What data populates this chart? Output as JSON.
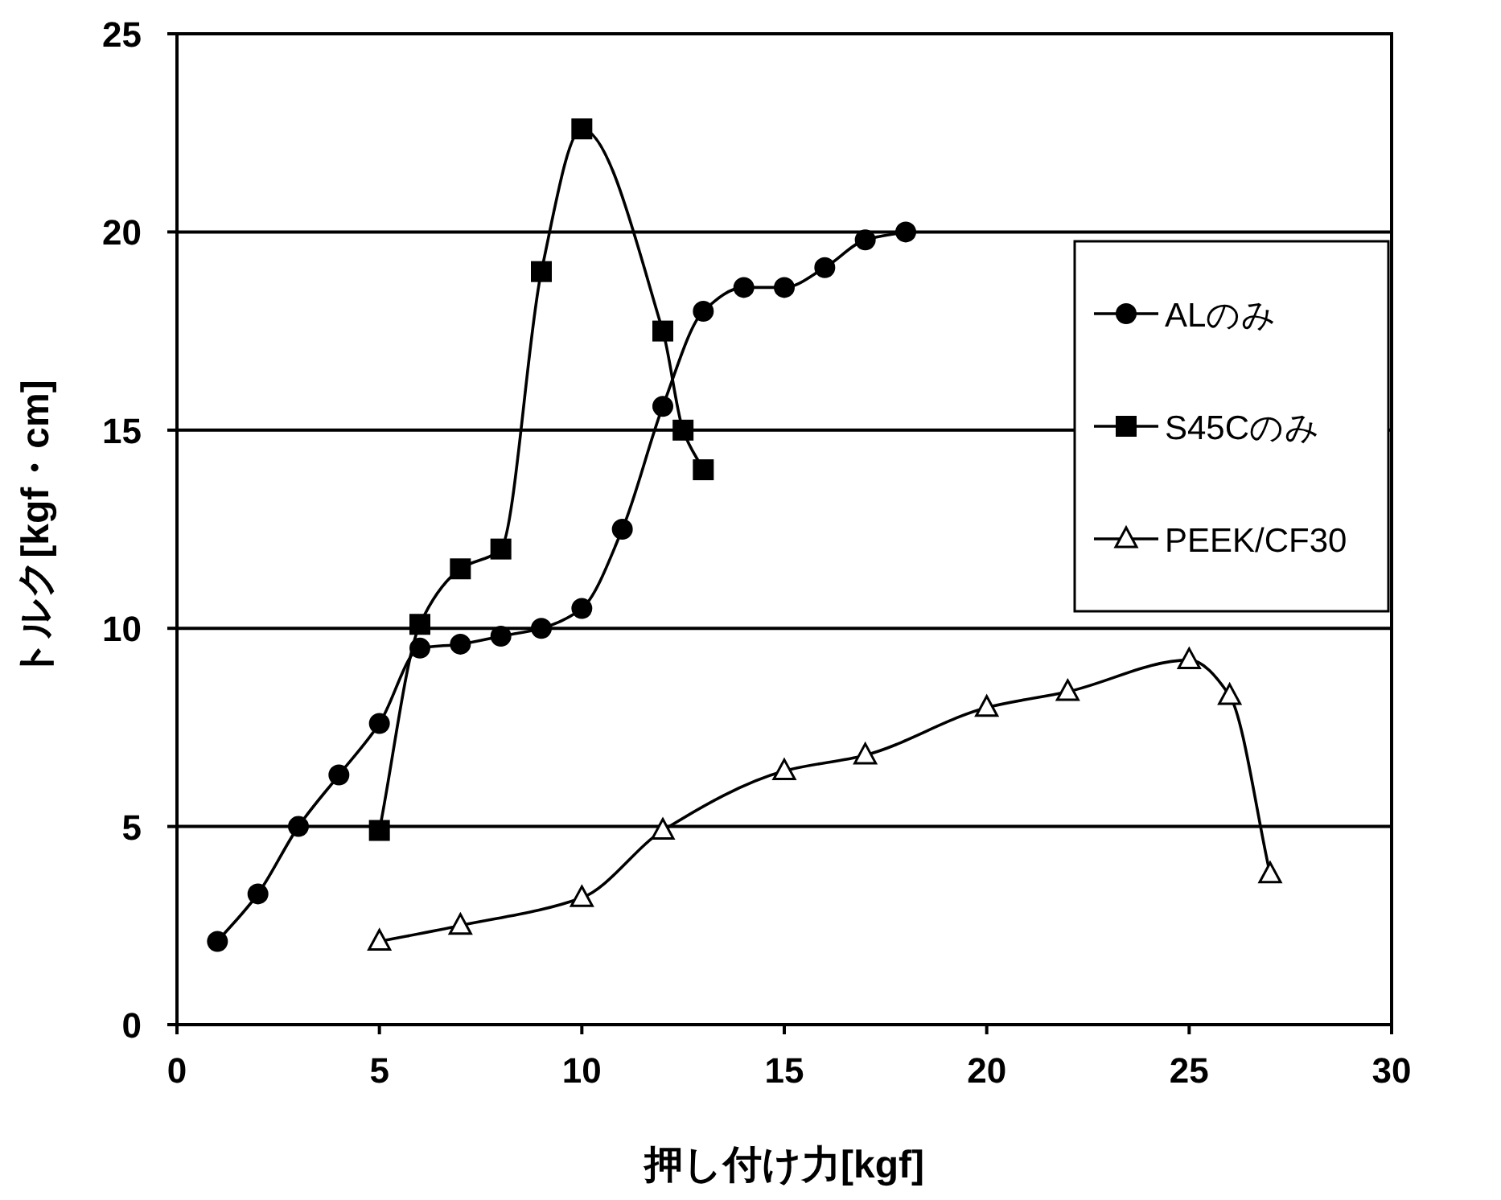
{
  "chart_data": {
    "type": "line",
    "xlabel": "押し付け力[kgf]",
    "ylabel": "トルク[kgf・cm]",
    "xlim": [
      0,
      30
    ],
    "xticks": [
      0,
      5,
      10,
      15,
      20,
      25,
      30
    ],
    "ylim": [
      0,
      25
    ],
    "yticks": [
      0,
      5,
      10,
      15,
      20,
      25
    ],
    "grid": "y",
    "legend": "right",
    "series": [
      {
        "name": "ALのみ",
        "color": "#000000",
        "marker": "circle",
        "x": [
          1,
          2,
          3,
          4,
          5,
          6,
          7,
          8,
          9,
          10,
          11,
          12,
          13,
          14,
          15,
          16,
          17,
          18
        ],
        "values": [
          2.1,
          3.3,
          5.0,
          6.3,
          7.6,
          9.5,
          9.6,
          9.8,
          10.0,
          10.5,
          12.5,
          15.6,
          18.0,
          18.6,
          18.6,
          19.1,
          19.8,
          20.0
        ]
      },
      {
        "name": "S45Cのみ",
        "color": "#000000",
        "marker": "square",
        "x": [
          5,
          6,
          7,
          8,
          9,
          10,
          12,
          12.5,
          13
        ],
        "values": [
          4.9,
          10.1,
          11.5,
          12.0,
          19.0,
          22.6,
          17.5,
          15.0,
          14.0
        ]
      },
      {
        "name": "PEEK/CF30",
        "color": "#000000",
        "marker": "triangle",
        "x": [
          5,
          7,
          10,
          12,
          15,
          17,
          20,
          22,
          25,
          26,
          27
        ],
        "values": [
          2.1,
          2.5,
          3.2,
          4.9,
          6.4,
          6.8,
          8.0,
          8.4,
          9.2,
          8.3,
          3.8
        ]
      }
    ]
  }
}
